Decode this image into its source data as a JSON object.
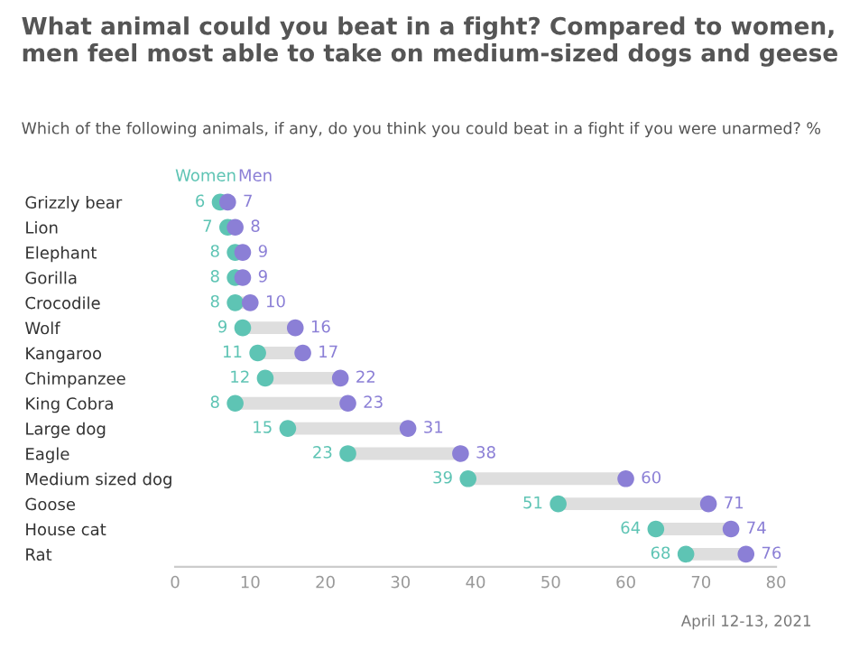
{
  "chart_data": {
    "type": "scatter",
    "orientation": "horizontal",
    "title": "What animal could you beat in a fight? Compared to women, men feel most able to take on medium-sized dogs and geese",
    "subtitle": "Which of the following animals, if any, do you think you could beat in a fight if you were unarmed? %",
    "categories": [
      "Grizzly bear",
      "Lion",
      "Elephant",
      "Gorilla",
      "Crocodile",
      "Wolf",
      "Kangaroo",
      "Chimpanzee",
      "King Cobra",
      "Large dog",
      "Eagle",
      "Medium sized dog",
      "Goose",
      "House cat",
      "Rat"
    ],
    "series": [
      {
        "name": "Women",
        "color": "#5ec4b4",
        "values": [
          6,
          7,
          8,
          8,
          8,
          9,
          11,
          12,
          8,
          15,
          23,
          39,
          51,
          64,
          68
        ]
      },
      {
        "name": "Men",
        "color": "#8b7fd6",
        "values": [
          7,
          8,
          9,
          9,
          10,
          16,
          17,
          22,
          23,
          31,
          38,
          60,
          71,
          74,
          76
        ]
      }
    ],
    "xlim": [
      0,
      80
    ],
    "xticks": [
      0,
      10,
      20,
      30,
      40,
      50,
      60,
      70,
      80
    ],
    "data_labels": true,
    "legend": "top left",
    "marker": "circle",
    "annotations": [
      "April 12-13, 2021"
    ]
  }
}
